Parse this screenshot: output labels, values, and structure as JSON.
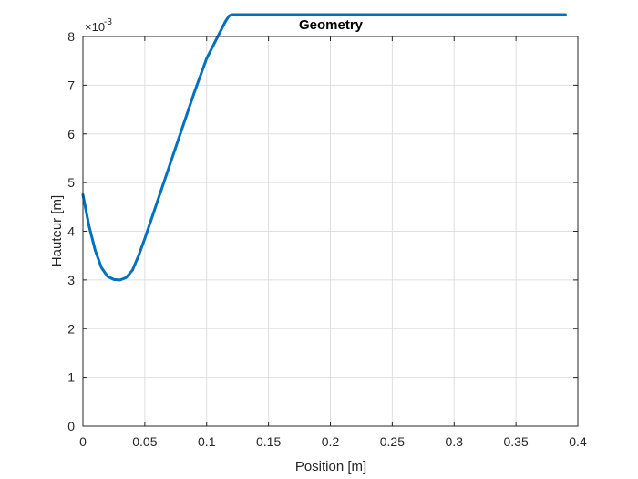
{
  "chart_data": {
    "type": "line",
    "title": "Geometry",
    "xlabel": "Position [m]",
    "ylabel": "Hauteur [m]",
    "exponent": {
      "base": "×10",
      "power": "-3"
    },
    "xlim": [
      0,
      0.4
    ],
    "ylim": [
      0,
      8
    ],
    "grid": true,
    "x_ticks": [
      0,
      0.05,
      0.1,
      0.15,
      0.2,
      0.25,
      0.3,
      0.35,
      0.4
    ],
    "x_tick_labels": [
      "0",
      "0.05",
      "0.1",
      "0.15",
      "0.2",
      "0.25",
      "0.3",
      "0.35",
      "0.4"
    ],
    "y_ticks": [
      0,
      1,
      2,
      3,
      4,
      5,
      6,
      7,
      8
    ],
    "y_tick_labels": [
      "0",
      "1",
      "2",
      "3",
      "4",
      "5",
      "6",
      "7",
      "8"
    ],
    "series": [
      {
        "color": "#0072BD",
        "x": [
          0,
          0.005,
          0.01,
          0.015,
          0.02,
          0.025,
          0.03,
          0.035,
          0.04,
          0.045,
          0.05,
          0.06,
          0.07,
          0.08,
          0.09,
          0.1,
          0.11,
          0.115,
          0.118,
          0.12,
          0.15,
          0.2,
          0.25,
          0.3,
          0.35,
          0.39
        ],
        "y": [
          4.75,
          4.1,
          3.6,
          3.25,
          3.07,
          3.01,
          3.0,
          3.05,
          3.2,
          3.5,
          3.85,
          4.6,
          5.35,
          6.1,
          6.85,
          7.55,
          8.05,
          8.3,
          8.42,
          8.45,
          8.45,
          8.45,
          8.45,
          8.45,
          8.45,
          8.45
        ]
      }
    ]
  }
}
